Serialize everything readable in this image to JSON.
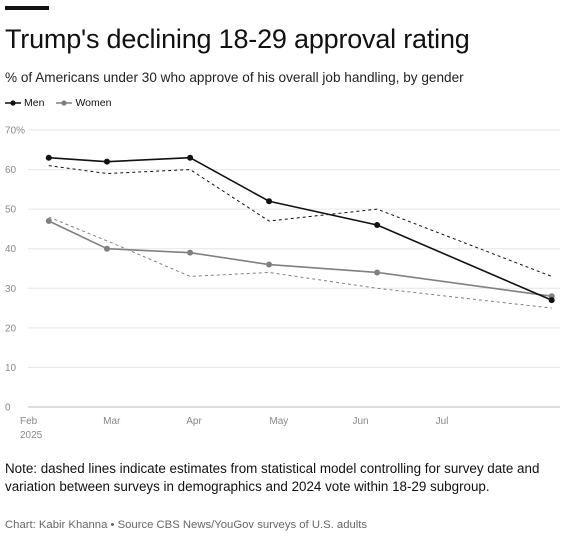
{
  "title": "Trump's declining 18-29 approval rating",
  "subtitle": "% of Americans under 30 who approve of his overall job handling, by gender",
  "note": "Note: dashed lines indicate estimates from statistical model controlling for survey date and variation between surveys in demographics and 2024 vote within 18-29 subgroup.",
  "credit": "Chart: Kabir Khanna • Source CBS News/YouGov surveys of U.S. adults",
  "colors": {
    "men": "#111111",
    "women": "#808080",
    "grid": "#e6e6e6",
    "axis": "#bbbbbb"
  },
  "chart_data": {
    "type": "line",
    "title": "Trump's declining 18-29 approval rating",
    "xlabel": "",
    "ylabel": "",
    "y_tick_labels": [
      "0",
      "10",
      "20",
      "30",
      "40",
      "50",
      "60",
      "70%"
    ],
    "y_ticks": [
      0,
      10,
      20,
      30,
      40,
      50,
      60,
      70
    ],
    "ylim": [
      0,
      70
    ],
    "x_tick_labels": [
      {
        "month": 2,
        "label": "Feb",
        "sublabel": "2025"
      },
      {
        "month": 3,
        "label": "Mar",
        "sublabel": ""
      },
      {
        "month": 4,
        "label": "Apr",
        "sublabel": ""
      },
      {
        "month": 5,
        "label": "May",
        "sublabel": ""
      },
      {
        "month": 6,
        "label": "Jun",
        "sublabel": ""
      },
      {
        "month": 7,
        "label": "Jul",
        "sublabel": ""
      }
    ],
    "xlim": [
      2,
      8.4
    ],
    "grid": true,
    "legend": "top-left",
    "series": [
      {
        "name": "Men",
        "color": "#111111",
        "style": "solid",
        "x": [
          2.25,
          2.95,
          3.95,
          4.9,
          6.2,
          8.3
        ],
        "values": [
          63,
          62,
          63,
          52,
          46,
          27
        ]
      },
      {
        "name": "Women",
        "color": "#808080",
        "style": "solid",
        "x": [
          2.25,
          2.95,
          3.95,
          4.9,
          6.2,
          8.3
        ],
        "values": [
          47,
          40,
          39,
          36,
          34,
          28
        ]
      },
      {
        "name": "",
        "color": "#111111",
        "style": "dashed",
        "x": [
          2.25,
          2.95,
          3.95,
          4.9,
          6.2,
          8.3
        ],
        "values": [
          61,
          59,
          60,
          47,
          50,
          33
        ]
      },
      {
        "name": "",
        "color": "#808080",
        "style": "dashed",
        "x": [
          2.25,
          2.95,
          3.95,
          4.9,
          6.2,
          8.3
        ],
        "values": [
          48,
          42,
          33,
          34,
          30,
          25
        ]
      }
    ]
  }
}
